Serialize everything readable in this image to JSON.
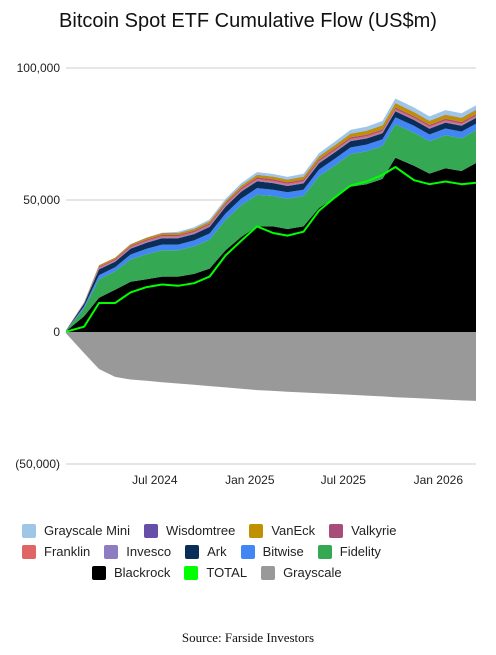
{
  "chart_data": {
    "type": "area",
    "title": "Bitcoin Spot ETF Cumulative Flow (US$m)",
    "source": "Source: Farside Investors",
    "y_ticks": [
      {
        "value": 100000,
        "label": "100,000"
      },
      {
        "value": 50000,
        "label": "50,000"
      },
      {
        "value": 0,
        "label": "0"
      },
      {
        "value": -50000,
        "label": "(50,000)"
      }
    ],
    "x_ticks": [
      {
        "value": "2024-07-01",
        "label": "Jul 2024"
      },
      {
        "value": "2025-01-01",
        "label": "Jan 2025"
      },
      {
        "value": "2025-07-01",
        "label": "Jul 2025"
      },
      {
        "value": "2026-01-01",
        "label": "Jan 2026"
      }
    ],
    "x_range": [
      "2024-01-11",
      "2026-03-15"
    ],
    "ylim": [
      -50000,
      100000
    ],
    "grid": "horizontal",
    "legend_position": "bottom",
    "x": [
      "2024-01-11",
      "2024-02-15",
      "2024-03-15",
      "2024-04-15",
      "2024-05-15",
      "2024-06-15",
      "2024-07-15",
      "2024-08-15",
      "2024-09-15",
      "2024-10-15",
      "2024-11-15",
      "2024-12-15",
      "2025-01-15",
      "2025-02-15",
      "2025-03-15",
      "2025-04-15",
      "2025-05-15",
      "2025-06-15",
      "2025-07-15",
      "2025-08-15",
      "2025-09-15",
      "2025-10-10",
      "2025-11-15",
      "2025-12-15",
      "2026-01-15",
      "2026-02-15",
      "2026-03-15"
    ],
    "series": [
      {
        "name": "Blackrock",
        "color": "#000000",
        "values": [
          300,
          6000,
          13000,
          16000,
          19000,
          20000,
          21000,
          21000,
          22000,
          24000,
          31000,
          36000,
          40000,
          40000,
          39000,
          40000,
          47000,
          51000,
          55000,
          56000,
          58000,
          66000,
          63000,
          60000,
          62000,
          61000,
          64000
        ]
      },
      {
        "name": "Fidelity",
        "color": "#34a853",
        "values": [
          200,
          3000,
          7000,
          7000,
          8500,
          9500,
          10000,
          10000,
          10500,
          11000,
          11500,
          12000,
          12000,
          11500,
          11500,
          11500,
          12000,
          12200,
          12400,
          12500,
          12500,
          12700,
          12500,
          12300,
          12500,
          12400,
          12400
        ]
      },
      {
        "name": "Bitwise",
        "color": "#4285f4",
        "values": [
          50,
          700,
          1500,
          1500,
          1800,
          2000,
          2100,
          2100,
          2200,
          2300,
          2400,
          2500,
          2500,
          2400,
          2400,
          2400,
          2500,
          2500,
          2500,
          2500,
          2500,
          2600,
          2600,
          2500,
          2600,
          2500,
          2500
        ]
      },
      {
        "name": "Ark",
        "color": "#0b2e59",
        "values": [
          50,
          1000,
          2200,
          2100,
          2200,
          2300,
          2400,
          2400,
          2400,
          2500,
          2600,
          2600,
          2600,
          2500,
          2400,
          2400,
          2400,
          2400,
          2400,
          2300,
          2300,
          2300,
          2200,
          2200,
          2200,
          2200,
          2200
        ]
      },
      {
        "name": "Invesco",
        "color": "#8e7cc3",
        "values": [
          10,
          150,
          300,
          300,
          300,
          350,
          350,
          350,
          350,
          350,
          350,
          350,
          350,
          350,
          350,
          350,
          350,
          350,
          350,
          350,
          350,
          350,
          350,
          350,
          350,
          350,
          350
        ]
      },
      {
        "name": "Franklin",
        "color": "#e06666",
        "values": [
          10,
          100,
          300,
          300,
          350,
          400,
          400,
          400,
          400,
          450,
          450,
          500,
          500,
          500,
          500,
          500,
          500,
          500,
          500,
          500,
          500,
          500,
          500,
          500,
          500,
          500,
          500
        ]
      },
      {
        "name": "Valkyrie",
        "color": "#a64d79",
        "values": [
          10,
          150,
          400,
          400,
          450,
          500,
          500,
          500,
          500,
          550,
          550,
          600,
          600,
          600,
          600,
          600,
          600,
          600,
          600,
          600,
          600,
          600,
          600,
          600,
          600,
          600,
          600
        ]
      },
      {
        "name": "VanEck",
        "color": "#bf9000",
        "values": [
          10,
          150,
          500,
          500,
          550,
          600,
          650,
          650,
          650,
          700,
          700,
          800,
          900,
          900,
          900,
          1000,
          1100,
          1200,
          1300,
          1400,
          1500,
          1600,
          1500,
          1400,
          1500,
          1500,
          1500
        ]
      },
      {
        "name": "Wisdomtree",
        "color": "#674ea7",
        "values": [
          5,
          30,
          100,
          100,
          100,
          100,
          100,
          100,
          100,
          100,
          100,
          100,
          100,
          100,
          100,
          100,
          100,
          100,
          100,
          100,
          100,
          100,
          100,
          100,
          100,
          100,
          100
        ]
      },
      {
        "name": "Grayscale Mini",
        "color": "#9fc5e8",
        "values": [
          0,
          0,
          0,
          0,
          0,
          0,
          100,
          500,
          600,
          700,
          800,
          900,
          1000,
          1000,
          1000,
          1100,
          1200,
          1300,
          1400,
          1500,
          1600,
          1700,
          1700,
          1700,
          1700,
          1700,
          1700
        ]
      },
      {
        "name": "Grayscale",
        "color": "#999999",
        "values": [
          -500,
          -8000,
          -14000,
          -17000,
          -18000,
          -18500,
          -19000,
          -19500,
          -20000,
          -20500,
          -21000,
          -21500,
          -22000,
          -22300,
          -22600,
          -22900,
          -23200,
          -23500,
          -23800,
          -24100,
          -24400,
          -24700,
          -25000,
          -25300,
          -25600,
          -25900,
          -26100
        ]
      },
      {
        "name": "TOTAL",
        "color": "#00ff00",
        "values": [
          100,
          2000,
          11000,
          11000,
          15000,
          17000,
          18000,
          17500,
          18500,
          21000,
          29000,
          34500,
          40000,
          37500,
          36500,
          38000,
          46000,
          51000,
          55500,
          57000,
          59500,
          62500,
          57500,
          56000,
          57000,
          56000,
          56500
        ]
      }
    ],
    "legend": [
      "Grayscale Mini",
      "Wisdomtree",
      "VanEck",
      "Valkyrie",
      "Franklin",
      "Invesco",
      "Ark",
      "Bitwise",
      "Fidelity",
      "Blackrock",
      "TOTAL",
      "Grayscale"
    ]
  }
}
